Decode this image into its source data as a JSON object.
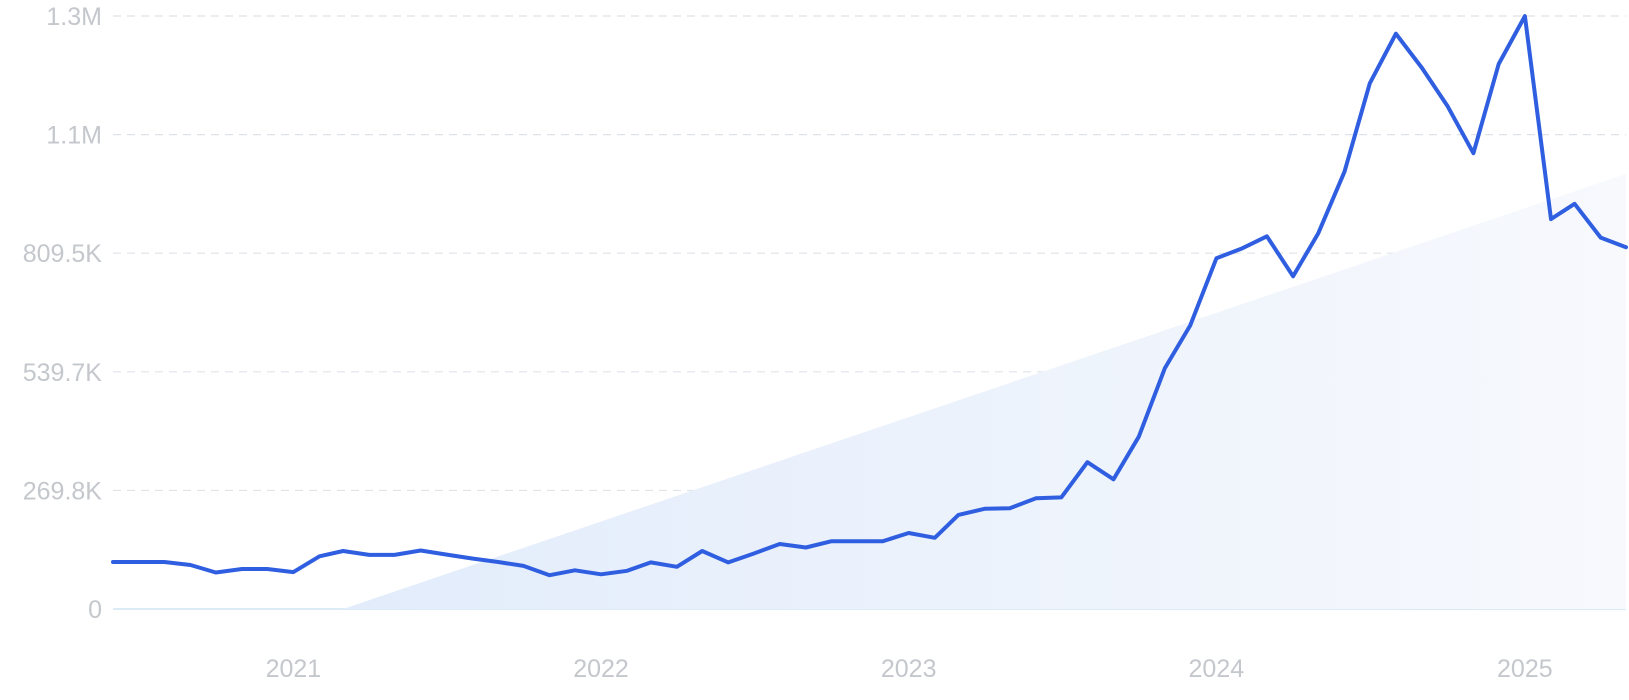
{
  "chart_data": {
    "type": "line",
    "y_ticks": [
      "0",
      "269.8K",
      "539.7K",
      "809.5K",
      "1.1M",
      "1.3M"
    ],
    "y_tick_values": [
      0,
      269800,
      539700,
      809500,
      1079300,
      1349200
    ],
    "ylim": [
      0,
      1349200
    ],
    "x_ticks": [
      "2021",
      "2022",
      "2023",
      "2024",
      "2025"
    ],
    "x_tick_values": [
      "2021-01-01",
      "2022-01-01",
      "2023-01-01",
      "2024-01-01",
      "2025-01-01"
    ],
    "xlim": [
      "2020-06-01",
      "2025-05-01"
    ],
    "grid": true,
    "line_color": "#2f5fe0",
    "trend_fill_color": "#e4eefb",
    "trend_fill": {
      "type": "area",
      "x": [
        "2021-03-01",
        "2025-05-01"
      ],
      "y": [
        0,
        990000
      ]
    },
    "series": [
      {
        "x": [
          "2020-06",
          "2020-07",
          "2020-08",
          "2020-09",
          "2020-10",
          "2020-11",
          "2020-12",
          "2021-01",
          "2021-02",
          "2021-03",
          "2021-04",
          "2021-05",
          "2021-06",
          "2021-07",
          "2021-08",
          "2021-09",
          "2021-10",
          "2021-11",
          "2021-12",
          "2022-01",
          "2022-02",
          "2022-03",
          "2022-04",
          "2022-05",
          "2022-06",
          "2022-07",
          "2022-08",
          "2022-09",
          "2022-10",
          "2022-11",
          "2022-12",
          "2023-01",
          "2023-02",
          "2023-03",
          "2023-04",
          "2023-05",
          "2023-06",
          "2023-07",
          "2023-08",
          "2023-09",
          "2023-10",
          "2023-11",
          "2023-12",
          "2024-01",
          "2024-02",
          "2024-03",
          "2024-04",
          "2024-05",
          "2024-06",
          "2024-07",
          "2024-08",
          "2024-09",
          "2024-10",
          "2024-11",
          "2024-12",
          "2025-01",
          "2025-02",
          "2025-03",
          "2025-04",
          "2025-05"
        ],
        "values": [
          107000,
          107000,
          107000,
          100000,
          83000,
          91000,
          91000,
          84000,
          120000,
          132000,
          123000,
          123000,
          133000,
          124000,
          115000,
          107000,
          98000,
          77000,
          88000,
          79000,
          87000,
          106000,
          96000,
          132000,
          106000,
          126000,
          148000,
          140000,
          154000,
          154000,
          154000,
          173000,
          162000,
          214000,
          228000,
          229000,
          252000,
          254000,
          334000,
          295000,
          392000,
          548000,
          645000,
          798000,
          821000,
          848000,
          757000,
          855000,
          995000,
          1196000,
          1309000,
          1231000,
          1145000,
          1037000,
          1240000,
          1349000,
          887000,
          922000,
          845000,
          823000
        ]
      }
    ]
  }
}
